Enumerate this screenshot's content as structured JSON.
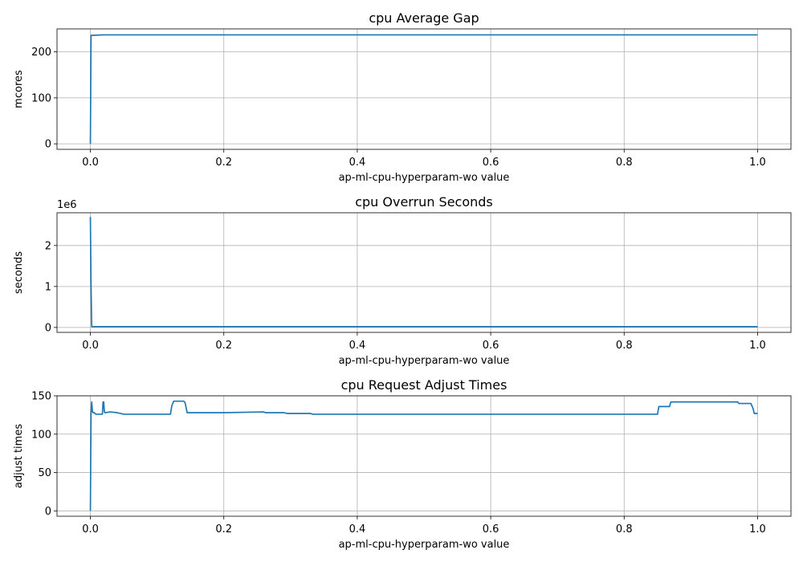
{
  "colors": {
    "series": "#1f77b4",
    "grid": "#b0b0b0"
  },
  "chart_data": [
    {
      "type": "line",
      "title": "cpu Average Gap",
      "xlabel": "ap-ml-cpu-hyperparam-wo value",
      "ylabel": "mcores",
      "multiplier": "",
      "xlim": [
        -0.05,
        1.05
      ],
      "ylim": [
        -12,
        250
      ],
      "xticks": [
        0.0,
        0.2,
        0.4,
        0.6,
        0.8,
        1.0
      ],
      "xtick_labels": [
        "0.0",
        "0.2",
        "0.4",
        "0.6",
        "0.8",
        "1.0"
      ],
      "yticks": [
        0,
        100,
        200
      ],
      "ytick_labels": [
        "0",
        "100",
        "200"
      ],
      "grid": true,
      "x": [
        0.0,
        0.001,
        0.002,
        0.02,
        1.0
      ],
      "y": [
        0,
        236,
        236,
        237,
        237
      ]
    },
    {
      "type": "line",
      "title": "cpu Overrun Seconds",
      "xlabel": "ap-ml-cpu-hyperparam-wo value",
      "ylabel": "seconds",
      "multiplier": "1e6",
      "xlim": [
        -0.05,
        1.05
      ],
      "ylim": [
        -120000,
        2800000
      ],
      "xticks": [
        0.0,
        0.2,
        0.4,
        0.6,
        0.8,
        1.0
      ],
      "xtick_labels": [
        "0.0",
        "0.2",
        "0.4",
        "0.6",
        "0.8",
        "1.0"
      ],
      "yticks": [
        0,
        1000000,
        2000000
      ],
      "ytick_labels": [
        "0",
        "1",
        "2"
      ],
      "grid": true,
      "x": [
        0.0,
        0.001,
        0.002,
        1.0
      ],
      "y": [
        2700000,
        1000000,
        20000,
        20000
      ]
    },
    {
      "type": "line",
      "title": "cpu Request Adjust Times",
      "xlabel": "ap-ml-cpu-hyperparam-wo value",
      "ylabel": "adjust times",
      "multiplier": "",
      "xlim": [
        -0.05,
        1.05
      ],
      "ylim": [
        -7,
        150
      ],
      "xticks": [
        0.0,
        0.2,
        0.4,
        0.6,
        0.8,
        1.0
      ],
      "xtick_labels": [
        "0.0",
        "0.2",
        "0.4",
        "0.6",
        "0.8",
        "1.0"
      ],
      "yticks": [
        0,
        50,
        100,
        150
      ],
      "ytick_labels": [
        "0",
        "50",
        "100",
        "150"
      ],
      "grid": true,
      "x": [
        0.0,
        0.001,
        0.002,
        0.003,
        0.004,
        0.005,
        0.006,
        0.008,
        0.01,
        0.018,
        0.019,
        0.02,
        0.021,
        0.022,
        0.03,
        0.04,
        0.045,
        0.05,
        0.12,
        0.122,
        0.125,
        0.14,
        0.142,
        0.145,
        0.2,
        0.26,
        0.262,
        0.29,
        0.295,
        0.33,
        0.333,
        0.5,
        0.7,
        0.85,
        0.852,
        0.868,
        0.87,
        0.97,
        0.972,
        0.99,
        0.993,
        0.995,
        1.0
      ],
      "y": [
        0,
        127,
        142,
        130,
        128,
        128,
        128,
        126,
        126,
        126,
        142,
        142,
        129,
        128,
        129,
        128,
        127,
        126,
        126,
        137,
        143,
        143,
        141,
        128,
        128,
        129,
        128,
        128,
        127,
        127,
        126,
        126,
        126,
        126,
        136,
        136,
        142,
        142,
        140,
        140,
        134,
        127,
        127
      ]
    }
  ]
}
